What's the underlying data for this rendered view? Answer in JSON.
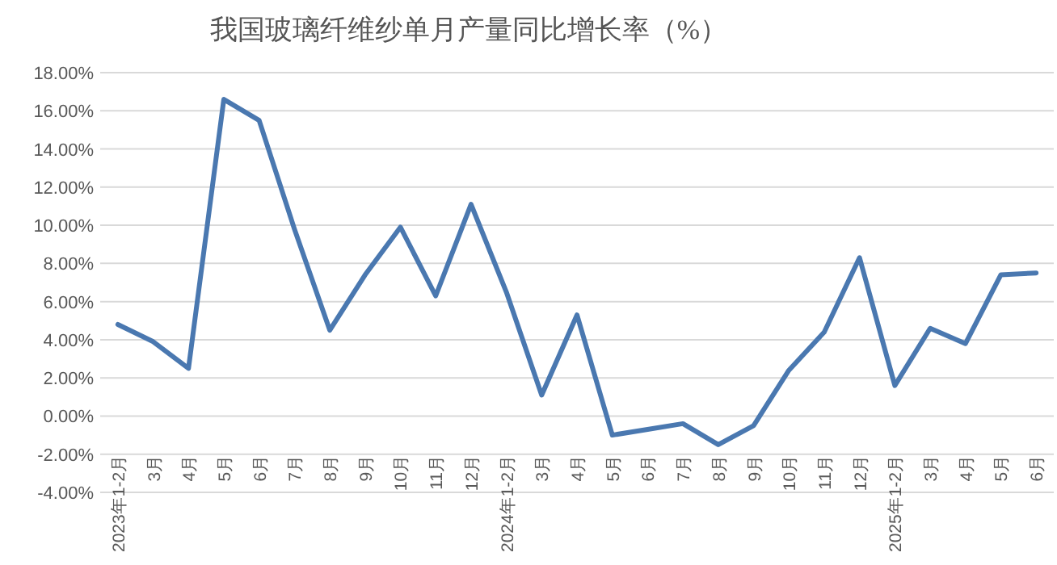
{
  "chart_data": {
    "type": "line",
    "title": "我国玻璃纤维纱单月产量同比增长率（%）",
    "categories": [
      "2023年1-2月",
      "3月",
      "4月",
      "5月",
      "6月",
      "7月",
      "8月",
      "9月",
      "10月",
      "11月",
      "12月",
      "2024年1-2月",
      "3月",
      "4月",
      "5月",
      "6月",
      "7月",
      "8月",
      "9月",
      "10月",
      "11月",
      "12月",
      "2025年1-2月",
      "3月",
      "4月",
      "5月",
      "6月"
    ],
    "series": [
      {
        "color": "#4a78b0",
        "values": [
          4.8,
          3.9,
          2.5,
          16.6,
          15.5,
          9.8,
          4.5,
          7.4,
          9.9,
          6.3,
          11.1,
          6.5,
          1.1,
          5.3,
          -1.0,
          -0.7,
          -0.4,
          -1.5,
          -0.5,
          2.4,
          4.4,
          8.3,
          1.6,
          4.6,
          3.8,
          7.4,
          7.5
        ]
      }
    ],
    "ylim": [
      -4,
      18
    ],
    "yticks": [
      {
        "value": -4,
        "label": "-4.00%"
      },
      {
        "value": -2,
        "label": "-2.00%"
      },
      {
        "value": 0,
        "label": "0.00%"
      },
      {
        "value": 2,
        "label": "2.00%"
      },
      {
        "value": 4,
        "label": "4.00%"
      },
      {
        "value": 6,
        "label": "6.00%"
      },
      {
        "value": 8,
        "label": "8.00%"
      },
      {
        "value": 10,
        "label": "10.00%"
      },
      {
        "value": 12,
        "label": "12.00%"
      },
      {
        "value": 14,
        "label": "14.00%"
      },
      {
        "value": 16,
        "label": "16.00%"
      },
      {
        "value": 18,
        "label": "18.00%"
      }
    ],
    "grid": "y",
    "marker": "none",
    "line_style": "solid"
  }
}
